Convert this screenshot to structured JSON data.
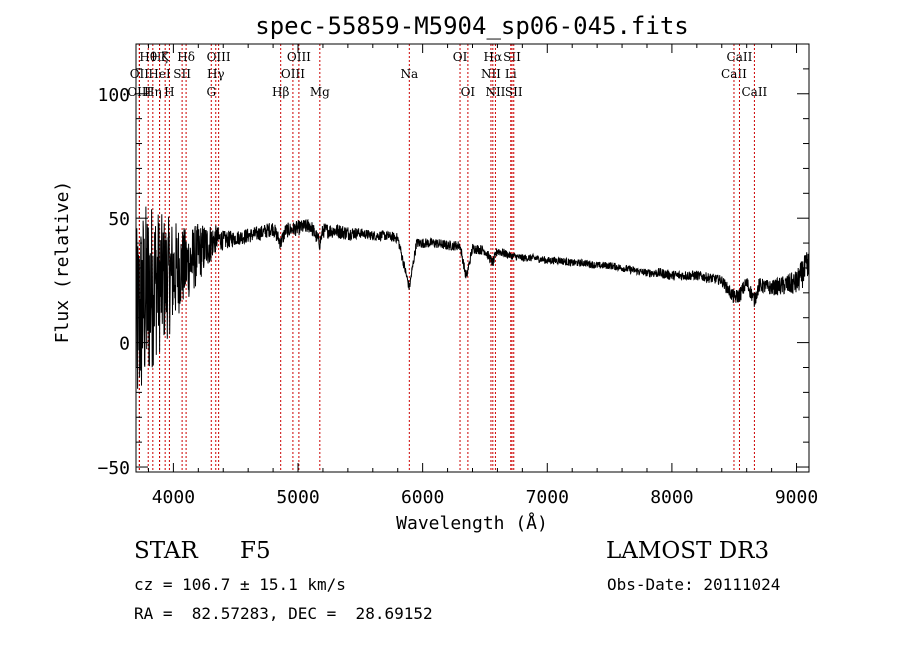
{
  "chart_data": {
    "type": "line",
    "title": "spec-55859-M5904_sp06-045.fits",
    "xlabel": "Wavelength (Å)",
    "ylabel": "Flux (relative)",
    "xlim": [
      3700,
      9100
    ],
    "ylim": [
      -52,
      120
    ],
    "x_ticks": [
      4000,
      5000,
      6000,
      7000,
      8000,
      9000
    ],
    "y_ticks": [
      -50,
      0,
      50,
      100
    ],
    "x_tick_labels": [
      "4000",
      "5000",
      "6000",
      "7000",
      "8000",
      "9000"
    ],
    "y_tick_labels": [
      "−50",
      "0",
      "50",
      "100"
    ],
    "line_color": "#000000",
    "marker_color": "#cc0000",
    "spectrum": {
      "name": "flux",
      "x": [
        3700,
        3750,
        3800,
        3850,
        3900,
        3950,
        4000,
        4050,
        4100,
        4150,
        4200,
        4250,
        4300,
        4350,
        4400,
        4500,
        4600,
        4700,
        4800,
        4861,
        4900,
        5000,
        5100,
        5175,
        5200,
        5300,
        5400,
        5500,
        5600,
        5700,
        5800,
        5893,
        5950,
        6000,
        6100,
        6200,
        6300,
        6350,
        6400,
        6500,
        6563,
        6600,
        6700,
        6800,
        6900,
        7000,
        7100,
        7200,
        7300,
        7400,
        7500,
        7600,
        7700,
        7800,
        7900,
        8000,
        8100,
        8200,
        8300,
        8400,
        8498,
        8542,
        8600,
        8662,
        8700,
        8800,
        8900,
        9000,
        9050,
        9100
      ],
      "y": [
        5,
        15,
        20,
        25,
        24,
        26,
        28,
        30,
        31,
        33,
        36,
        38,
        40,
        42,
        41,
        42,
        43,
        44,
        46,
        40,
        45,
        46,
        47,
        40,
        45,
        45,
        44,
        44,
        43,
        43,
        42,
        22,
        40,
        40,
        40,
        39,
        39,
        26,
        38,
        37,
        32,
        37,
        35,
        34,
        34,
        33,
        33,
        32,
        32,
        31,
        31,
        30,
        29,
        28,
        28,
        27,
        27,
        27,
        26,
        25,
        18,
        19,
        24,
        17,
        23,
        22,
        23,
        24,
        28,
        30
      ],
      "amplitude": [
        40,
        40,
        38,
        32,
        28,
        25,
        22,
        18,
        15,
        14,
        12,
        10,
        8,
        5,
        4,
        3,
        3,
        3,
        3,
        3,
        3,
        3,
        3,
        3,
        3,
        3,
        3,
        2,
        2,
        2,
        2,
        2,
        2,
        2,
        2,
        2,
        2,
        2,
        2,
        2,
        2,
        2,
        1.5,
        1.5,
        1.5,
        1.5,
        1.5,
        1.5,
        1.5,
        1.5,
        1.5,
        1.5,
        1.5,
        1.5,
        2,
        2,
        2,
        2,
        2,
        2,
        3,
        3,
        3,
        3,
        3,
        3,
        4,
        5,
        6,
        8
      ]
    },
    "line_markers": [
      {
        "name": "OII",
        "wavelength": 3727,
        "row": 1
      },
      {
        "name": "Hθ",
        "wavelength": 3798,
        "row": 0
      },
      {
        "name": "OIII",
        "wavelength": 3727,
        "row": 2
      },
      {
        "name": "Hη",
        "wavelength": 3835,
        "row": 2
      },
      {
        "name": "Hζ",
        "wavelength": 3889,
        "row": 0
      },
      {
        "name": "HeI",
        "wavelength": 3889,
        "row": 1
      },
      {
        "name": "K",
        "wavelength": 3934,
        "row": 0
      },
      {
        "name": "H",
        "wavelength": 3968,
        "row": 2
      },
      {
        "name": "SII",
        "wavelength": 4070,
        "row": 1
      },
      {
        "name": "Hδ",
        "wavelength": 4102,
        "row": 0
      },
      {
        "name": "OIII",
        "wavelength": 4363,
        "row": 0
      },
      {
        "name": "Hγ",
        "wavelength": 4340,
        "row": 1
      },
      {
        "name": "G",
        "wavelength": 4304,
        "row": 2
      },
      {
        "name": "Hβ",
        "wavelength": 4861,
        "row": 2
      },
      {
        "name": "OIII",
        "wavelength": 4959,
        "row": 1
      },
      {
        "name": "OIII",
        "wavelength": 5007,
        "row": 0
      },
      {
        "name": "Mg",
        "wavelength": 5175,
        "row": 2
      },
      {
        "name": "Na",
        "wavelength": 5893,
        "row": 1
      },
      {
        "name": "OI",
        "wavelength": 6300,
        "row": 0
      },
      {
        "name": "OI",
        "wavelength": 6363,
        "row": 2
      },
      {
        "name": "NII",
        "wavelength": 6548,
        "row": 1
      },
      {
        "name": "Hα",
        "wavelength": 6563,
        "row": 0
      },
      {
        "name": "NII",
        "wavelength": 6584,
        "row": 2
      },
      {
        "name": "SII",
        "wavelength": 6717,
        "row": 0
      },
      {
        "name": "Li",
        "wavelength": 6707,
        "row": 1
      },
      {
        "name": "SII",
        "wavelength": 6731,
        "row": 2
      },
      {
        "name": "CaII",
        "wavelength": 8498,
        "row": 1
      },
      {
        "name": "CaII",
        "wavelength": 8542,
        "row": 0
      },
      {
        "name": "CaII",
        "wavelength": 8662,
        "row": 2
      }
    ]
  },
  "info": {
    "object_class": "STAR",
    "subclass": "F5",
    "survey": "LAMOST DR3",
    "redshift": "cz = 106.7 ± 15.1 km/s",
    "obs_date": "Obs-Date: 20111024",
    "coords": "RA =  82.57283, DEC =  28.69152"
  }
}
